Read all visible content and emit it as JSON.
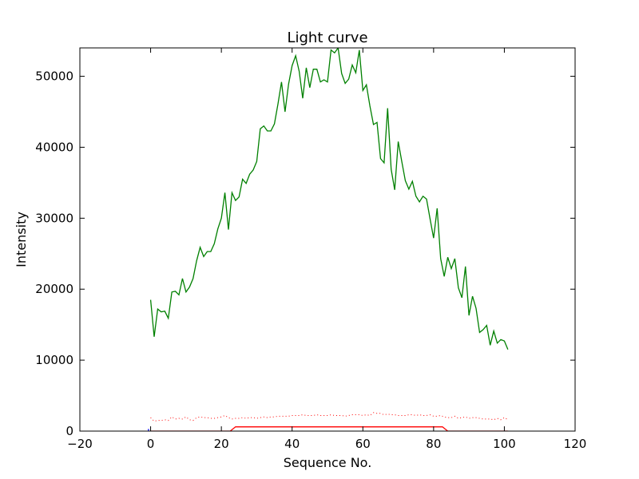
{
  "chart_data": {
    "type": "line",
    "title": "Light curve",
    "xlabel": "Sequence No.",
    "ylabel": "Intensity",
    "xlim": [
      -20,
      120
    ],
    "ylim": [
      0,
      54000
    ],
    "xticks": [
      -20,
      0,
      20,
      40,
      60,
      80,
      100,
      120
    ],
    "yticks": [
      0,
      10000,
      20000,
      30000,
      40000,
      50000
    ],
    "grid": false,
    "legend": "none",
    "series": [
      {
        "color": "#008000",
        "style": "solid",
        "x": [
          0,
          1,
          2,
          3,
          4,
          5,
          6,
          7,
          8,
          9,
          10,
          11,
          12,
          13,
          14,
          15,
          16,
          17,
          18,
          19,
          20,
          21,
          22,
          23,
          24,
          25,
          26,
          27,
          28,
          29,
          30,
          31,
          32,
          33,
          34,
          35,
          36,
          37,
          38,
          39,
          40,
          41,
          42,
          43,
          44,
          45,
          46,
          47,
          48,
          49,
          50,
          51,
          52,
          53,
          54,
          55,
          56,
          57,
          58,
          59,
          60,
          61,
          62,
          63,
          64,
          65,
          66,
          67,
          68,
          69,
          70,
          71,
          72,
          73,
          74,
          75,
          76,
          77,
          78,
          79,
          80,
          81,
          82,
          83,
          84,
          85,
          86,
          87,
          88,
          89,
          90,
          91,
          92,
          93,
          94,
          95,
          96,
          97,
          98,
          99,
          100,
          101
        ],
        "y": [
          18500,
          13300,
          17200,
          16800,
          16900,
          15900,
          19600,
          19700,
          19200,
          21500,
          19600,
          20300,
          21500,
          24000,
          25900,
          24600,
          25300,
          25300,
          26400,
          28500,
          30000,
          33600,
          28400,
          33600,
          32500,
          33000,
          35500,
          34900,
          36200,
          36800,
          38000,
          42600,
          43000,
          42300,
          42300,
          43300,
          46100,
          49200,
          45000,
          48900,
          51500,
          52900,
          50700,
          46900,
          51200,
          48400,
          51000,
          51000,
          49200,
          49500,
          49200,
          53700,
          53300,
          54000,
          50400,
          49000,
          49600,
          51600,
          50500,
          53700,
          48000,
          48800,
          45800,
          43200,
          43500,
          38400,
          37800,
          45500,
          36900,
          34000,
          40800,
          38000,
          35300,
          34100,
          35200,
          33100,
          32300,
          33100,
          32700,
          29900,
          27200,
          31400,
          24300,
          21800,
          24500,
          22900,
          24300,
          20200,
          18800,
          23200,
          16300,
          19000,
          17300,
          13900,
          14300,
          14900,
          12100,
          14100,
          12400,
          12900,
          12700,
          11500
        ]
      },
      {
        "color": "#ff0000",
        "style": "dotted",
        "x": [
          0,
          1,
          2,
          3,
          4,
          5,
          6,
          7,
          8,
          9,
          10,
          11,
          12,
          13,
          14,
          15,
          16,
          17,
          18,
          19,
          20,
          21,
          22,
          23,
          24,
          25,
          26,
          27,
          28,
          29,
          30,
          31,
          32,
          33,
          34,
          35,
          36,
          37,
          38,
          39,
          40,
          41,
          42,
          43,
          44,
          45,
          46,
          47,
          48,
          49,
          50,
          51,
          52,
          53,
          54,
          55,
          56,
          57,
          58,
          59,
          60,
          61,
          62,
          63,
          64,
          65,
          66,
          67,
          68,
          69,
          70,
          71,
          72,
          73,
          74,
          75,
          76,
          77,
          78,
          79,
          80,
          81,
          82,
          83,
          84,
          85,
          86,
          87,
          88,
          89,
          90,
          91,
          92,
          93,
          94,
          95,
          96,
          97,
          98,
          99,
          100,
          101
        ],
        "y": [
          1900,
          1400,
          1500,
          1500,
          1600,
          1500,
          2000,
          1700,
          1800,
          1700,
          2000,
          1600,
          1500,
          1900,
          2000,
          1900,
          1900,
          1800,
          1800,
          1900,
          2000,
          2200,
          1900,
          1700,
          1800,
          1800,
          1900,
          1800,
          1900,
          1900,
          1800,
          1900,
          2000,
          1900,
          2000,
          2000,
          2100,
          2100,
          2100,
          2100,
          2200,
          2200,
          2200,
          2300,
          2200,
          2200,
          2200,
          2300,
          2200,
          2200,
          2200,
          2300,
          2200,
          2200,
          2200,
          2100,
          2200,
          2300,
          2300,
          2300,
          2200,
          2300,
          2200,
          2600,
          2500,
          2500,
          2300,
          2400,
          2300,
          2300,
          2200,
          2200,
          2200,
          2300,
          2300,
          2200,
          2300,
          2200,
          2200,
          2300,
          2100,
          2100,
          2200,
          2000,
          1900,
          1900,
          2100,
          1800,
          1900,
          2000,
          1800,
          1900,
          1900,
          1800,
          1700,
          1700,
          1700,
          1600,
          1800,
          1600,
          1900,
          1600
        ]
      },
      {
        "color": "#ff0000",
        "style": "solid",
        "x": [
          0,
          22.5,
          24,
          82.5,
          84,
          101
        ],
        "y": [
          0,
          0,
          600,
          600,
          0,
          0
        ]
      },
      {
        "color": "#0000ff",
        "style": "solid",
        "x": [
          -0.6,
          -0.6
        ],
        "y": [
          0,
          300
        ]
      }
    ]
  }
}
